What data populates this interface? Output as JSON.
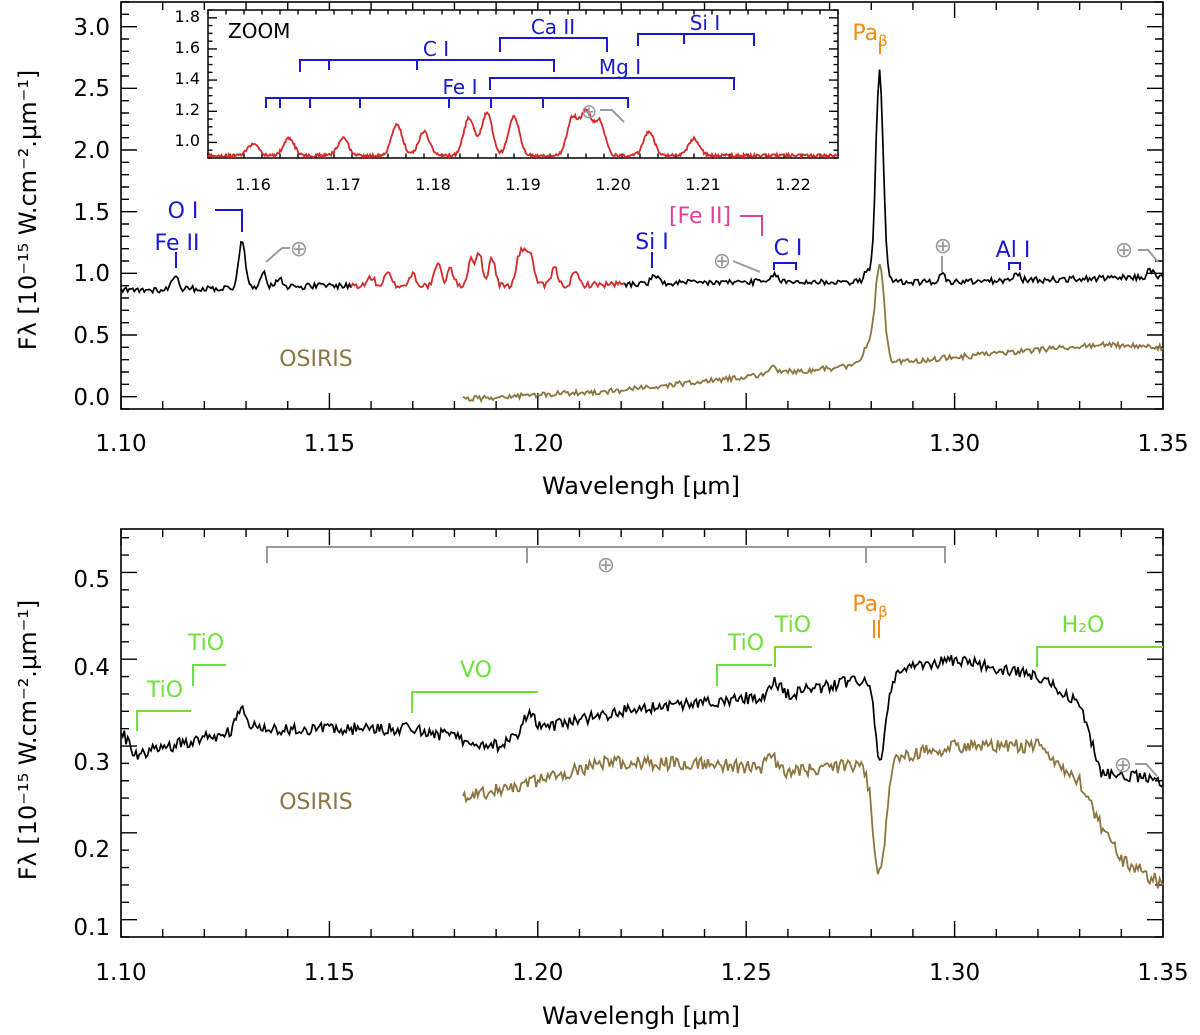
{
  "chart_data": [
    {
      "id": "top",
      "type": "line",
      "xlabel": "Wavelengh [μm]",
      "ylabel": "Fλ [10⁻¹⁵ W.cm⁻².μm⁻¹]",
      "xlim": [
        1.1,
        1.35
      ],
      "ylim": [
        -0.1,
        3.2
      ],
      "xticks": [
        "1.10",
        "1.15",
        "1.20",
        "1.25",
        "1.30",
        "1.35"
      ],
      "yticks": [
        "0.0",
        "0.5",
        "1.0",
        "1.5",
        "2.0",
        "2.5",
        "3.0"
      ],
      "series": [
        {
          "name": "spectrum",
          "color": "#000000",
          "x_range": [
            1.1,
            1.35
          ],
          "continuum": [
            [
              1.1,
              0.86
            ],
            [
              1.15,
              0.9
            ],
            [
              1.2,
              0.9
            ],
            [
              1.25,
              0.93
            ],
            [
              1.3,
              0.93
            ],
            [
              1.35,
              0.97
            ]
          ]
        },
        {
          "name": "zoom region",
          "color": "#d42a2a",
          "x_range": [
            1.155,
            1.221
          ]
        },
        {
          "name": "OSIRIS",
          "color": "#8b7540",
          "x_range": [
            1.182,
            1.35
          ],
          "continuum": [
            [
              1.182,
              -0.02
            ],
            [
              1.22,
              0.05
            ],
            [
              1.26,
              0.2
            ],
            [
              1.3,
              0.32
            ],
            [
              1.335,
              0.42
            ],
            [
              1.35,
              0.4
            ]
          ]
        }
      ],
      "emission_lines": [
        [
          1.113,
          0.12
        ],
        [
          1.129,
          0.4
        ],
        [
          1.134,
          0.12
        ],
        [
          1.138,
          0.08
        ],
        [
          1.16,
          0.07
        ],
        [
          1.164,
          0.1
        ],
        [
          1.17,
          0.1
        ],
        [
          1.176,
          0.18
        ],
        [
          1.179,
          0.14
        ],
        [
          1.184,
          0.22
        ],
        [
          1.186,
          0.25
        ],
        [
          1.189,
          0.23
        ],
        [
          1.1955,
          0.22
        ],
        [
          1.197,
          0.25
        ],
        [
          1.1985,
          0.2
        ],
        [
          1.204,
          0.14
        ],
        [
          1.209,
          0.1
        ],
        [
          1.228,
          0.07
        ],
        [
          1.257,
          0.06
        ],
        [
          1.279,
          0.08
        ],
        [
          1.282,
          1.7
        ],
        [
          1.297,
          0.06
        ],
        [
          1.315,
          0.05
        ],
        [
          1.347,
          0.06
        ]
      ],
      "osiris_lines": [
        [
          1.256,
          0.05
        ],
        [
          1.279,
          0.15
        ],
        [
          1.282,
          0.8
        ]
      ],
      "line_labels": [
        {
          "text": "O I",
          "color": "#1a1acc"
        },
        {
          "text": "Fe II",
          "color": "#1a1acc"
        },
        {
          "text": "Si I",
          "color": "#1a1acc"
        },
        {
          "text": "[Fe II]",
          "color": "#e0409a"
        },
        {
          "text": "C I",
          "color": "#1a1acc"
        },
        {
          "text": "Al I",
          "color": "#1a1acc"
        },
        {
          "text": "Pa",
          "sub": "β",
          "color": "#f08c12"
        },
        {
          "text": "OSIRIS",
          "color": "#8b7540"
        }
      ],
      "telluric_symbol": "⊕",
      "inset": {
        "title": "ZOOM",
        "xlim": [
          1.155,
          1.225
        ],
        "ylim": [
          0.9,
          1.85
        ],
        "xticks": [
          "1.16",
          "1.17",
          "1.18",
          "1.19",
          "1.20",
          "1.21",
          "1.22"
        ],
        "yticks": [
          "1.0",
          "1.2",
          "1.4",
          "1.6",
          "1.8"
        ],
        "line_labels": [
          {
            "text": "C I",
            "color": "#1a1acc"
          },
          {
            "text": "Ca II",
            "color": "#1a1acc"
          },
          {
            "text": "Si I",
            "color": "#1a1acc"
          },
          {
            "text": "Mg I",
            "color": "#1a1acc"
          },
          {
            "text": "Fe I",
            "color": "#1a1acc"
          }
        ]
      }
    },
    {
      "id": "bottom",
      "type": "line",
      "xlabel": "Wavelengh [μm]",
      "ylabel": "Fλ [10⁻¹⁵ W.cm⁻².μm⁻¹]",
      "xlim": [
        1.1,
        1.35
      ],
      "ylim": [
        0.08,
        0.55
      ],
      "xticks": [
        "1.10",
        "1.15",
        "1.20",
        "1.25",
        "1.30",
        "1.35"
      ],
      "yticks": [
        "0.1",
        "0.2",
        "0.3",
        "0.4",
        "0.5"
      ],
      "series": [
        {
          "name": "spectrum",
          "color": "#000000",
          "x_range": [
            1.1,
            1.35
          ],
          "continuum": [
            [
              1.1,
              0.32
            ],
            [
              1.103,
              0.29
            ],
            [
              1.13,
              0.32
            ],
            [
              1.15,
              0.32
            ],
            [
              1.17,
              0.32
            ],
            [
              1.19,
              0.3
            ],
            [
              1.2,
              0.32
            ],
            [
              1.22,
              0.34
            ],
            [
              1.24,
              0.35
            ],
            [
              1.26,
              0.36
            ],
            [
              1.28,
              0.38
            ],
            [
              1.3,
              0.4
            ],
            [
              1.32,
              0.38
            ],
            [
              1.33,
              0.35
            ],
            [
              1.335,
              0.27
            ],
            [
              1.35,
              0.26
            ]
          ]
        },
        {
          "name": "OSIRIS",
          "color": "#8b7540",
          "x_range": [
            1.182,
            1.35
          ],
          "continuum": [
            [
              1.182,
              0.24
            ],
            [
              1.2,
              0.26
            ],
            [
              1.215,
              0.28
            ],
            [
              1.24,
              0.28
            ],
            [
              1.26,
              0.27
            ],
            [
              1.28,
              0.28
            ],
            [
              1.3,
              0.3
            ],
            [
              1.32,
              0.3
            ],
            [
              1.33,
              0.26
            ],
            [
              1.335,
              0.21
            ],
            [
              1.34,
              0.17
            ],
            [
              1.35,
              0.14
            ]
          ]
        }
      ],
      "features_main": [
        [
          1.129,
          0.025,
          0.0012
        ],
        [
          1.198,
          0.025,
          0.0012
        ],
        [
          1.2805,
          0.025,
          0.0008
        ],
        [
          1.282,
          -0.1,
          0.0015
        ],
        [
          1.257,
          0.015,
          0.0012
        ]
      ],
      "features_osiris": [
        [
          1.282,
          -0.13,
          0.0015
        ],
        [
          1.256,
          0.015,
          0.0012
        ]
      ],
      "band_labels": [
        {
          "text": "TiO",
          "color": "#6fe03a"
        },
        {
          "text": "TiO",
          "color": "#6fe03a"
        },
        {
          "text": "VO",
          "color": "#6fe03a"
        },
        {
          "text": "TiO",
          "color": "#6fe03a"
        },
        {
          "text": "TiO",
          "color": "#6fe03a"
        },
        {
          "text": "H₂O",
          "color": "#6fe03a"
        },
        {
          "text": "Pa",
          "sub": "β",
          "color": "#f08c12"
        },
        {
          "text": "OSIRIS",
          "color": "#8b7540"
        }
      ],
      "telluric_symbol": "⊕"
    }
  ]
}
